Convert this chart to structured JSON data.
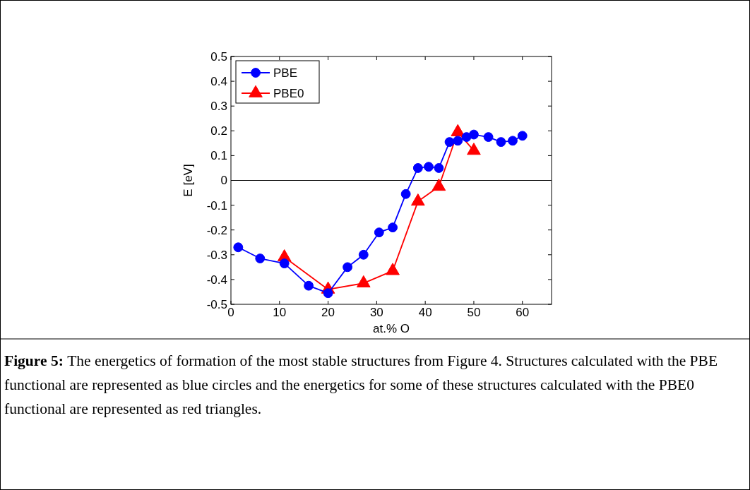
{
  "chart_data": {
    "type": "line",
    "xlabel": "at.% O",
    "ylabel": "E [eV]",
    "xlim": [
      0,
      66
    ],
    "xticks": [
      0,
      10,
      20,
      30,
      40,
      50,
      60
    ],
    "ylim": [
      -0.5,
      0.5
    ],
    "yticks": [
      -0.5,
      -0.4,
      -0.3,
      -0.2,
      -0.1,
      0,
      0.1,
      0.2,
      0.3,
      0.4,
      0.5
    ],
    "series": [
      {
        "name": "PBE",
        "color": "#0000ff",
        "marker": "circle",
        "x": [
          1.5,
          6,
          11,
          16,
          20,
          24,
          27.3,
          30.5,
          33.3,
          36,
          38.5,
          40.7,
          42.8,
          45,
          46.7,
          48.5,
          50,
          53,
          55.6,
          58,
          60
        ],
        "values": [
          -0.27,
          -0.315,
          -0.335,
          -0.425,
          -0.455,
          -0.35,
          -0.3,
          -0.21,
          -0.19,
          -0.055,
          0.05,
          0.055,
          0.05,
          0.155,
          0.16,
          0.175,
          0.185,
          0.175,
          0.155,
          0.16,
          0.18
        ]
      },
      {
        "name": "PBE0",
        "color": "#ff0000",
        "marker": "triangle",
        "x": [
          11,
          20,
          27.3,
          33.3,
          38.5,
          42.8,
          46.7,
          50
        ],
        "values": [
          -0.31,
          -0.44,
          -0.415,
          -0.365,
          -0.085,
          -0.025,
          0.195,
          0.12
        ]
      }
    ],
    "ref_lines": [
      {
        "axis": "y",
        "value": 0,
        "color": "#000000"
      }
    ],
    "legend": "top left",
    "grid": false,
    "annotations": [
      "Figure 5:",
      "The energetics of formation of the most stable structures from Figure 4. Structures calculated with the PBE functional are represented as blue circles and the energetics for some of these structures calculated with the PBE0 functional are represented as red triangles."
    ]
  }
}
